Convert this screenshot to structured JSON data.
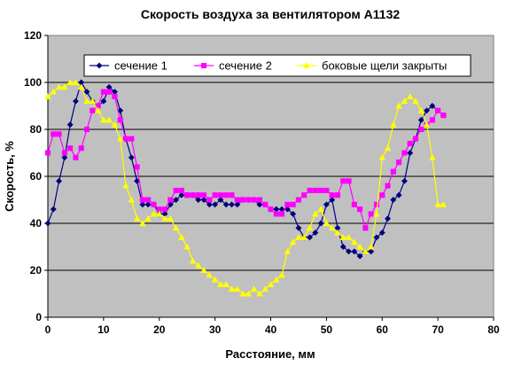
{
  "chart_data": {
    "type": "line",
    "title": "Скорость воздуха за вентилятором А1132",
    "xlabel": "Расстояние, мм",
    "ylabel": "Скорость, %",
    "xlim": [
      0,
      80
    ],
    "ylim": [
      0,
      120
    ],
    "xticks": [
      "0",
      "10",
      "20",
      "30",
      "40",
      "50",
      "60",
      "70",
      "80"
    ],
    "yticks": [
      "0",
      "20",
      "40",
      "60",
      "80",
      "100",
      "120"
    ],
    "grid": true,
    "plot_background": "#C0C0C0",
    "legend_position": "top",
    "series": [
      {
        "name": "сечение 1",
        "color": "#000080",
        "marker": "diamond",
        "x": [
          0,
          1,
          2,
          3,
          4,
          5,
          6,
          7,
          8,
          9,
          10,
          11,
          12,
          13,
          14,
          15,
          16,
          17,
          18,
          19,
          20,
          21,
          22,
          23,
          24,
          25,
          26,
          27,
          28,
          29,
          30,
          31,
          32,
          33,
          34,
          35,
          36,
          37,
          38,
          39,
          40,
          41,
          42,
          43,
          44,
          45,
          46,
          47,
          48,
          49,
          50,
          51,
          52,
          53,
          54,
          55,
          56,
          57,
          58,
          59,
          60,
          61,
          62,
          63,
          64,
          65,
          66,
          67,
          68,
          69,
          70,
          71
        ],
        "y": [
          40,
          46,
          58,
          68,
          82,
          92,
          100,
          96,
          92,
          90,
          92,
          98,
          96,
          88,
          76,
          68,
          58,
          48,
          48,
          48,
          44,
          44,
          48,
          50,
          52,
          52,
          52,
          50,
          50,
          48,
          48,
          50,
          48,
          48,
          48,
          50,
          50,
          50,
          48,
          48,
          46,
          46,
          46,
          46,
          44,
          38,
          34,
          34,
          36,
          40,
          48,
          50,
          38,
          30,
          28,
          28,
          26,
          28,
          28,
          34,
          36,
          42,
          50,
          52,
          58,
          70,
          76,
          84,
          88,
          90,
          88,
          86
        ]
      },
      {
        "name": "сечение 2",
        "color": "#FF00FF",
        "marker": "square",
        "x": [
          0,
          1,
          2,
          3,
          4,
          5,
          6,
          7,
          8,
          9,
          10,
          11,
          12,
          13,
          14,
          15,
          16,
          17,
          18,
          19,
          20,
          21,
          22,
          23,
          24,
          25,
          26,
          27,
          28,
          29,
          30,
          31,
          32,
          33,
          34,
          35,
          36,
          37,
          38,
          39,
          40,
          41,
          42,
          43,
          44,
          45,
          46,
          47,
          48,
          49,
          50,
          51,
          52,
          53,
          54,
          55,
          56,
          57,
          58,
          59,
          60,
          61,
          62,
          63,
          64,
          65,
          66,
          67,
          68,
          69,
          70,
          71
        ],
        "y": [
          70,
          78,
          78,
          70,
          72,
          68,
          72,
          80,
          88,
          90,
          96,
          96,
          94,
          84,
          76,
          76,
          64,
          50,
          50,
          48,
          46,
          46,
          50,
          54,
          54,
          52,
          52,
          52,
          52,
          50,
          52,
          52,
          52,
          52,
          50,
          50,
          50,
          50,
          50,
          48,
          46,
          44,
          44,
          48,
          48,
          50,
          52,
          54,
          54,
          54,
          54,
          52,
          52,
          58,
          58,
          48,
          46,
          38,
          44,
          48,
          52,
          56,
          62,
          66,
          70,
          74,
          76,
          80,
          82,
          84,
          88,
          86
        ]
      },
      {
        "name": "боковые щели закрыты",
        "color": "#FFFF00",
        "marker": "triangle",
        "x": [
          0,
          1,
          2,
          3,
          4,
          5,
          6,
          7,
          8,
          9,
          10,
          11,
          12,
          13,
          14,
          15,
          16,
          17,
          18,
          19,
          20,
          21,
          22,
          23,
          24,
          25,
          26,
          27,
          28,
          29,
          30,
          31,
          32,
          33,
          34,
          35,
          36,
          37,
          38,
          39,
          40,
          41,
          42,
          43,
          44,
          45,
          46,
          47,
          48,
          49,
          50,
          51,
          52,
          53,
          54,
          55,
          56,
          57,
          58,
          59,
          60,
          61,
          62,
          63,
          64,
          65,
          66,
          67,
          68,
          69,
          70,
          71
        ],
        "y": [
          94,
          96,
          98,
          98,
          100,
          100,
          98,
          92,
          92,
          88,
          84,
          84,
          82,
          76,
          56,
          50,
          42,
          40,
          42,
          44,
          44,
          42,
          42,
          38,
          34,
          30,
          24,
          22,
          20,
          18,
          16,
          14,
          14,
          12,
          12,
          10,
          10,
          12,
          10,
          12,
          14,
          16,
          18,
          28,
          32,
          34,
          34,
          38,
          44,
          46,
          40,
          38,
          36,
          34,
          34,
          32,
          30,
          28,
          30,
          44,
          68,
          72,
          82,
          90,
          92,
          94,
          92,
          88,
          82,
          68,
          48,
          48
        ]
      }
    ]
  }
}
